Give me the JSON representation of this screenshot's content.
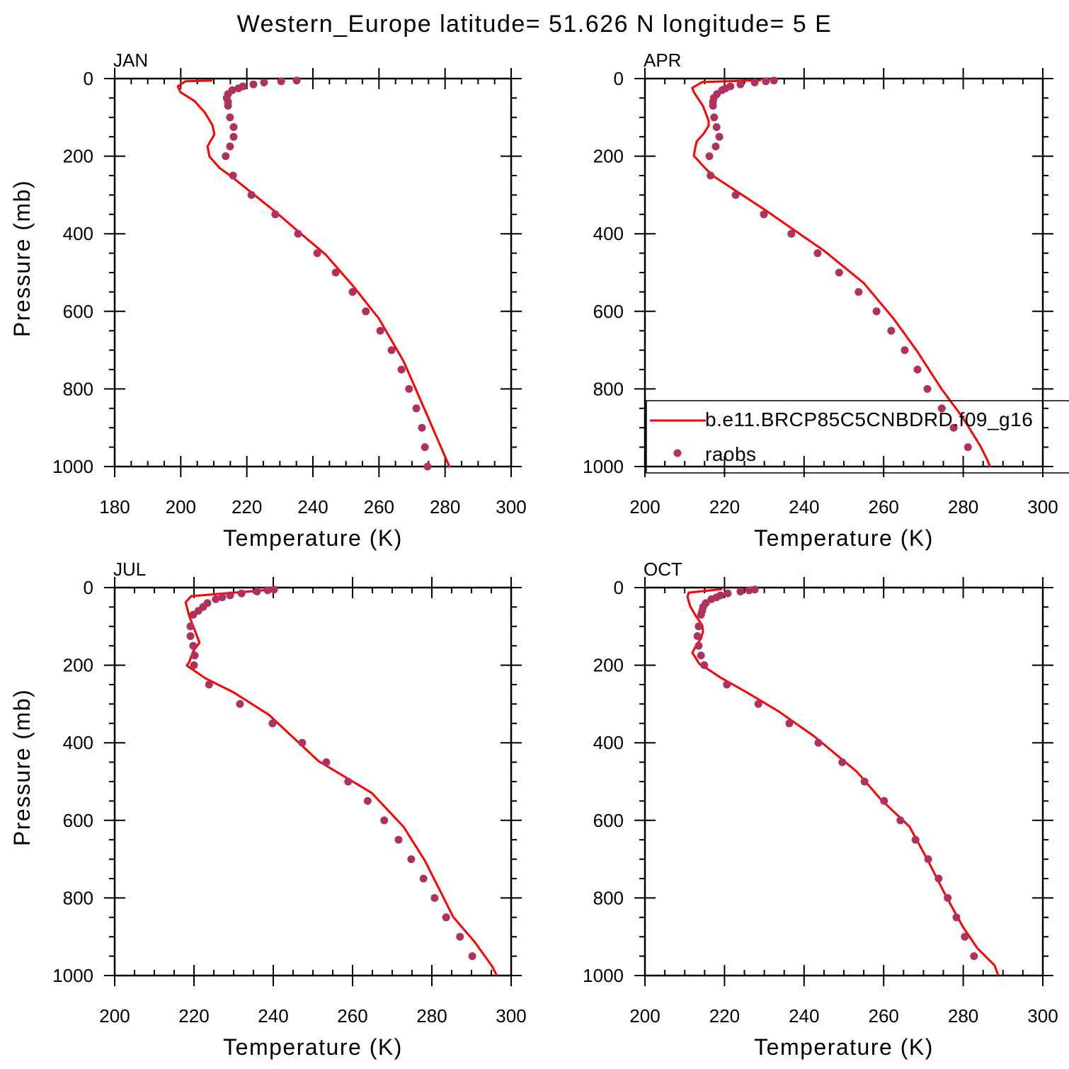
{
  "title": "Western_Europe  latitude= 51.626 N longitude= 5 E",
  "colors": {
    "model": "#ff0000",
    "obs": "#b03060",
    "axis": "#000000"
  },
  "legend": {
    "model_label": "b.e11.BRCP85C5CNBDRD.f09_g16",
    "obs_label": "raobs",
    "placement": "bottom-right of APR panel"
  },
  "chart_data": [
    {
      "type": "line",
      "panel_label": "JAN",
      "xlabel": "Temperature (K)",
      "ylabel": "Pressure (mb)",
      "xlim": [
        180,
        300
      ],
      "ylim": [
        1000,
        0
      ],
      "xticks": [
        "180",
        "200",
        "220",
        "240",
        "260",
        "280",
        "300"
      ],
      "yticks": [
        "0",
        "200",
        "400",
        "600",
        "800",
        "1000"
      ],
      "series": [
        {
          "name": "b.e11.BRCP85C5CNBDRD.f09_g16",
          "kind": "line",
          "points": [
            [
              209.6,
              5
            ],
            [
              201.4,
              7
            ],
            [
              199.1,
              20
            ],
            [
              199.9,
              35
            ],
            [
              204.2,
              58
            ],
            [
              207.4,
              89
            ],
            [
              209.6,
              120
            ],
            [
              210.2,
              144
            ],
            [
              208.9,
              162
            ],
            [
              208.1,
              175
            ],
            [
              208.7,
              201
            ],
            [
              211.7,
              230
            ],
            [
              216,
              257
            ],
            [
              221.4,
              294
            ],
            [
              228.9,
              345
            ],
            [
              236.4,
              400
            ],
            [
              243.9,
              454
            ],
            [
              252,
              533
            ],
            [
              260,
              619
            ],
            [
              267.4,
              728
            ],
            [
              274.9,
              874
            ],
            [
              281.4,
              1002
            ]
          ]
        },
        {
          "name": "raobs",
          "kind": "scatter",
          "points": [
            [
              235.1,
              5
            ],
            [
              230.4,
              7
            ],
            [
              225.2,
              10
            ],
            [
              222,
              15
            ],
            [
              218.8,
              20
            ],
            [
              217.5,
              25
            ],
            [
              215.6,
              30
            ],
            [
              214.3,
              40
            ],
            [
              213.9,
              50
            ],
            [
              214.3,
              60
            ],
            [
              214.3,
              70
            ],
            [
              214.9,
              100
            ],
            [
              216,
              125
            ],
            [
              216,
              150
            ],
            [
              214.9,
              175
            ],
            [
              213.6,
              200
            ],
            [
              215.8,
              250
            ],
            [
              221.4,
              300
            ],
            [
              228.6,
              350
            ],
            [
              235.5,
              400
            ],
            [
              241.3,
              450
            ],
            [
              246.9,
              500
            ],
            [
              252,
              550
            ],
            [
              256,
              600
            ],
            [
              260.4,
              650
            ],
            [
              263.8,
              700
            ],
            [
              266.8,
              750
            ],
            [
              269.1,
              800
            ],
            [
              271.3,
              850
            ],
            [
              273,
              900
            ],
            [
              273.9,
              950
            ],
            [
              274.7,
              1000
            ]
          ]
        }
      ]
    },
    {
      "type": "line",
      "panel_label": "APR",
      "xlabel": "Temperature (K)",
      "ylabel": "",
      "xlim": [
        200,
        300
      ],
      "ylim": [
        1000,
        0
      ],
      "xticks": [
        "200",
        "220",
        "240",
        "260",
        "280",
        "300"
      ],
      "yticks": [
        "0",
        "200",
        "400",
        "600",
        "800",
        "1000"
      ],
      "series": [
        {
          "name": "b.e11.BRCP85C5CNBDRD.f09_g16",
          "kind": "line",
          "points": [
            [
              229.2,
              4
            ],
            [
              214.4,
              9
            ],
            [
              211.9,
              24
            ],
            [
              212.3,
              35
            ],
            [
              214.6,
              71
            ],
            [
              216,
              108
            ],
            [
              216,
              122
            ],
            [
              214.6,
              144
            ],
            [
              213,
              162
            ],
            [
              212.6,
              181
            ],
            [
              212.3,
              199
            ],
            [
              215.5,
              235
            ],
            [
              217.6,
              254
            ],
            [
              230.1,
              338
            ],
            [
              245.2,
              445
            ],
            [
              255,
              527
            ],
            [
              262.5,
              619
            ],
            [
              268.3,
              701
            ],
            [
              274.6,
              801
            ],
            [
              279.9,
              874
            ],
            [
              284.3,
              947
            ],
            [
              286.1,
              984
            ],
            [
              286.8,
              1002
            ]
          ]
        },
        {
          "name": "raobs",
          "kind": "scatter",
          "points": [
            [
              232.4,
              5
            ],
            [
              230.4,
              7
            ],
            [
              227.6,
              10
            ],
            [
              224,
              15
            ],
            [
              221.5,
              20
            ],
            [
              220.3,
              25
            ],
            [
              219.4,
              30
            ],
            [
              218.1,
              40
            ],
            [
              217.3,
              50
            ],
            [
              217.1,
              60
            ],
            [
              217.1,
              70
            ],
            [
              217.4,
              100
            ],
            [
              218,
              125
            ],
            [
              218.7,
              150
            ],
            [
              217.8,
              175
            ],
            [
              216.2,
              200
            ],
            [
              216.5,
              250
            ],
            [
              222.8,
              300
            ],
            [
              229.9,
              350
            ],
            [
              236.8,
              400
            ],
            [
              243.4,
              450
            ],
            [
              248.8,
              500
            ],
            [
              253.7,
              550
            ],
            [
              258.2,
              600
            ],
            [
              261.9,
              650
            ],
            [
              265.3,
              700
            ],
            [
              268.5,
              750
            ],
            [
              271,
              800
            ],
            [
              274.6,
              850
            ],
            [
              277.6,
              900
            ],
            [
              281.2,
              950
            ]
          ]
        }
      ]
    },
    {
      "type": "line",
      "panel_label": "JUL",
      "xlabel": "Temperature (K)",
      "ylabel": "Pressure (mb)",
      "xlim": [
        200,
        300
      ],
      "ylim": [
        1000,
        0
      ],
      "xticks": [
        "200",
        "220",
        "240",
        "260",
        "280",
        "300"
      ],
      "yticks": [
        "0",
        "200",
        "400",
        "600",
        "800",
        "1000"
      ],
      "series": [
        {
          "name": "b.e11.BRCP85C5CNBDRD.f09_g16",
          "kind": "line",
          "points": [
            [
              239.8,
              5
            ],
            [
              219.3,
              22
            ],
            [
              217.9,
              38
            ],
            [
              218.8,
              73
            ],
            [
              220.4,
              115
            ],
            [
              221.4,
              142
            ],
            [
              219.8,
              164
            ],
            [
              218.8,
              192
            ],
            [
              218.2,
              201
            ],
            [
              222.9,
              234
            ],
            [
              230,
              270
            ],
            [
              238.9,
              328
            ],
            [
              251.4,
              447
            ],
            [
              264.8,
              529
            ],
            [
              272.9,
              617
            ],
            [
              278.2,
              703
            ],
            [
              281.8,
              776
            ],
            [
              285.4,
              849
            ],
            [
              290.7,
              912
            ],
            [
              295.2,
              976
            ],
            [
              296.4,
              1000
            ]
          ]
        },
        {
          "name": "raobs",
          "kind": "scatter",
          "points": [
            [
              240.2,
              5
            ],
            [
              238.6,
              7
            ],
            [
              235.9,
              10
            ],
            [
              232,
              15
            ],
            [
              229.1,
              20
            ],
            [
              227.1,
              25
            ],
            [
              225.5,
              30
            ],
            [
              223.4,
              40
            ],
            [
              222.3,
              50
            ],
            [
              221.1,
              60
            ],
            [
              219.8,
              70
            ],
            [
              219.1,
              100
            ],
            [
              219.1,
              125
            ],
            [
              219.8,
              150
            ],
            [
              220.2,
              175
            ],
            [
              220,
              200
            ],
            [
              223.8,
              250
            ],
            [
              231.6,
              300
            ],
            [
              239.8,
              350
            ],
            [
              247.3,
              400
            ],
            [
              253.4,
              450
            ],
            [
              258.9,
              500
            ],
            [
              263.8,
              550
            ],
            [
              268,
              600
            ],
            [
              271.6,
              650
            ],
            [
              274.8,
              700
            ],
            [
              277.9,
              750
            ],
            [
              280.7,
              800
            ],
            [
              283.6,
              850
            ],
            [
              287.1,
              900
            ],
            [
              290.2,
              950
            ]
          ]
        }
      ]
    },
    {
      "type": "line",
      "panel_label": "OCT",
      "xlabel": "Temperature (K)",
      "ylabel": "",
      "xlim": [
        200,
        300
      ],
      "ylim": [
        1000,
        0
      ],
      "xticks": [
        "200",
        "220",
        "240",
        "260",
        "280",
        "300"
      ],
      "yticks": [
        "0",
        "200",
        "400",
        "600",
        "800",
        "1000"
      ],
      "series": [
        {
          "name": "b.e11.BRCP85C5CNBDRD.f09_g16",
          "kind": "line",
          "points": [
            [
              219.4,
              4
            ],
            [
              211,
              13
            ],
            [
              210.7,
              24
            ],
            [
              211.4,
              49
            ],
            [
              212.8,
              73
            ],
            [
              214.4,
              97
            ],
            [
              214.6,
              113
            ],
            [
              214.1,
              131
            ],
            [
              212.8,
              151
            ],
            [
              211.9,
              168
            ],
            [
              212.8,
              182
            ],
            [
              213.7,
              197
            ],
            [
              215.8,
              210
            ],
            [
              219,
              232
            ],
            [
              225.6,
              270
            ],
            [
              233.6,
              319
            ],
            [
              242.5,
              383
            ],
            [
              253.2,
              474
            ],
            [
              259.4,
              547
            ],
            [
              266.5,
              616
            ],
            [
              271,
              701
            ],
            [
              275.5,
              792
            ],
            [
              279.9,
              874
            ],
            [
              283.5,
              929
            ],
            [
              287.9,
              974
            ],
            [
              288.8,
              1000
            ]
          ]
        },
        {
          "name": "raobs",
          "kind": "scatter",
          "points": [
            [
              227.6,
              5
            ],
            [
              226.2,
              7
            ],
            [
              224,
              10
            ],
            [
              220.8,
              15
            ],
            [
              219,
              20
            ],
            [
              218,
              25
            ],
            [
              216.7,
              30
            ],
            [
              215.3,
              40
            ],
            [
              214.6,
              50
            ],
            [
              214.4,
              60
            ],
            [
              214.1,
              70
            ],
            [
              213.5,
              100
            ],
            [
              213.2,
              125
            ],
            [
              213.5,
              150
            ],
            [
              214.1,
              175
            ],
            [
              214.9,
              200
            ],
            [
              220.6,
              250
            ],
            [
              228.5,
              300
            ],
            [
              236.3,
              350
            ],
            [
              243.6,
              400
            ],
            [
              249.6,
              450
            ],
            [
              255.2,
              500
            ],
            [
              260.1,
              550
            ],
            [
              264.2,
              600
            ],
            [
              268,
              650
            ],
            [
              271.2,
              700
            ],
            [
              273.8,
              750
            ],
            [
              276.1,
              800
            ],
            [
              278.3,
              850
            ],
            [
              280.4,
              900
            ],
            [
              282.7,
              950
            ]
          ]
        }
      ]
    }
  ]
}
